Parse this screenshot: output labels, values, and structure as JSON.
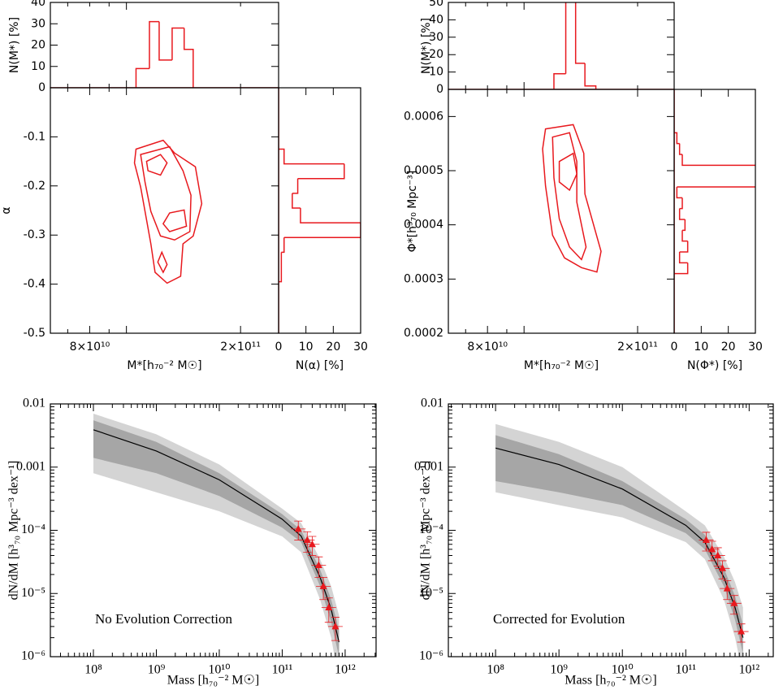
{
  "chart_data": [
    {
      "type": "histogram",
      "ylabel": "N(M*) [%]",
      "xscale": "log",
      "xlim": [
        63000000000.0,
        252000000000.0
      ],
      "ylim": [
        0,
        40
      ],
      "yticks": [
        0,
        10,
        20,
        30,
        40
      ],
      "bins": [
        106000000000.0,
        115000000000.0,
        122000000000.0,
        132000000000.0,
        142000000000.0,
        150000000000.0
      ],
      "counts": [
        9,
        31,
        13,
        28,
        18
      ],
      "color": "#e8191e"
    },
    {
      "type": "contour",
      "xlabel": "M*[h₇₀⁻² M☉]",
      "ylabel": "α",
      "xscale": "log",
      "xlim": [
        63000000000.0,
        252000000000.0
      ],
      "xticks": [
        {
          "value": 80000000000.0,
          "label": "8×10¹⁰"
        },
        {
          "value": 200000000000.0,
          "label": "2×10¹¹"
        }
      ],
      "ylim": [
        -0.5,
        0
      ],
      "yticks": [
        -0.5,
        -0.4,
        -0.3,
        -0.2,
        -0.1
      ],
      "color": "#e8191e",
      "series": [
        {
          "x": [
            106000000000.0,
            125000000000.0,
            134000000000.0,
            152000000000.0,
            158000000000.0,
            150000000000.0,
            141000000000.0,
            139000000000.0,
            128000000000.0,
            119000000000.0,
            116000000000.0,
            113000000000.0,
            109000000000.0,
            105000000000.0
          ],
          "y": [
            -0.125,
            -0.107,
            -0.133,
            -0.161,
            -0.236,
            -0.302,
            -0.318,
            -0.384,
            -0.398,
            -0.376,
            -0.318,
            -0.269,
            -0.202,
            -0.153
          ]
        },
        {
          "x": [
            109000000000.0,
            130000000000.0,
            141000000000.0,
            148000000000.0,
            147000000000.0,
            134000000000.0,
            123000000000.0,
            116000000000.0,
            112000000000.0
          ],
          "y": [
            -0.136,
            -0.12,
            -0.169,
            -0.219,
            -0.293,
            -0.31,
            -0.302,
            -0.252,
            -0.193
          ]
        },
        {
          "x": [
            113000000000.0,
            123000000000.0,
            128000000000.0,
            123000000000.0,
            114000000000.0
          ],
          "y": [
            -0.15,
            -0.136,
            -0.153,
            -0.178,
            -0.169
          ]
        },
        {
          "x": [
            125000000000.0,
            130000000000.0,
            142000000000.0,
            144000000000.0,
            130000000000.0
          ],
          "y": [
            -0.277,
            -0.255,
            -0.249,
            -0.282,
            -0.293
          ]
        },
        {
          "x": [
            124000000000.0,
            128000000000.0,
            125000000000.0,
            121000000000.0
          ],
          "y": [
            -0.335,
            -0.36,
            -0.376,
            -0.355
          ]
        }
      ]
    },
    {
      "type": "histogram",
      "orientation": "horizontal",
      "xlabel": "N(α) [%]",
      "xlim": [
        0,
        30
      ],
      "xticks": [
        0,
        10,
        20,
        30
      ],
      "ylim": [
        -0.5,
        0
      ],
      "bins": [
        -0.395,
        -0.335,
        -0.305,
        -0.275,
        -0.245,
        -0.215,
        -0.185,
        -0.155,
        -0.125
      ],
      "counts": [
        1,
        2,
        30,
        8,
        5,
        7,
        24,
        2
      ],
      "color": "#e8191e"
    },
    {
      "type": "histogram",
      "ylabel": "N(M*) [%]",
      "xscale": "log",
      "xlim": [
        63000000000.0,
        250000000000.0
      ],
      "ylim": [
        0,
        50
      ],
      "yticks": [
        0,
        10,
        20,
        30,
        40,
        50
      ],
      "bins": [
        120000000000.0,
        129000000000.0,
        137000000000.0,
        145000000000.0,
        155000000000.0
      ],
      "counts": [
        9,
        55,
        15,
        2
      ],
      "color": "#e8191e"
    },
    {
      "type": "contour",
      "xlabel": "M*[h₇₀⁻² M☉]",
      "ylabel": "Φ*[h³₇₀ Mpc⁻³]",
      "xscale": "log",
      "xlim": [
        63000000000.0,
        250000000000.0
      ],
      "xticks": [
        {
          "value": 80000000000.0,
          "label": "8×10¹⁰"
        },
        {
          "value": 200000000000.0,
          "label": "2×10¹¹"
        }
      ],
      "ylim": [
        0.0002,
        0.00065
      ],
      "yticks": [
        0.0002,
        0.0003,
        0.0004,
        0.0005,
        0.0006
      ],
      "color": "#e8191e",
      "series": [
        {
          "x": [
            114000000000.0,
            135000000000.0,
            144000000000.0,
            145000000000.0,
            160000000000.0,
            156000000000.0,
            142000000000.0,
            128000000000.0,
            119000000000.0,
            114000000000.0,
            112000000000.0
          ],
          "y": [
            0.000577,
            0.000585,
            0.000532,
            0.000457,
            0.000351,
            0.000313,
            0.000321,
            0.000339,
            0.000381,
            0.000472,
            0.00054
          ]
        },
        {
          "x": [
            119000000000.0,
            132000000000.0,
            138000000000.0,
            138000000000.0,
            146000000000.0,
            142000000000.0,
            132000000000.0,
            124000000000.0,
            120000000000.0
          ],
          "y": [
            0.000562,
            0.00057,
            0.000517,
            0.000442,
            0.000359,
            0.000336,
            0.000359,
            0.000411,
            0.000487
          ]
        },
        {
          "x": [
            124000000000.0,
            135000000000.0,
            138000000000.0,
            132000000000.0,
            124000000000.0
          ],
          "y": [
            0.000517,
            0.000532,
            0.000494,
            0.000464,
            0.000479
          ]
        }
      ]
    },
    {
      "type": "histogram",
      "orientation": "horizontal",
      "xlabel": "N(Φ*) [%]",
      "xlim": [
        0,
        30
      ],
      "xticks": [
        0,
        10,
        20,
        30
      ],
      "ylim": [
        0.0002,
        0.00065
      ],
      "bins": [
        0.00031,
        0.00033,
        0.00035,
        0.00037,
        0.00039,
        0.00041,
        0.00043,
        0.00045,
        0.00047,
        0.00051,
        0.00053,
        0.00055,
        0.00057
      ],
      "counts": [
        5,
        2,
        5,
        3,
        4,
        2,
        3,
        1,
        32,
        3,
        2,
        1
      ],
      "color": "#e8191e"
    },
    {
      "type": "band",
      "xlabel": "Mass [h₇₀⁻² M☉]",
      "ylabel": "dN/dM [h³₇₀ Mpc⁻³ dex⁻¹]",
      "annotation": "No Evolution Correction",
      "xscale": "log",
      "yscale": "log",
      "xlim": [
        20700000.0,
        3100000000000.0
      ],
      "ylim": [
        1e-06,
        0.01
      ],
      "xticks": [
        {
          "value": 100000000.0,
          "label": "10⁸"
        },
        {
          "value": 1000000000.0,
          "label": "10⁹"
        },
        {
          "value": 10000000000.0,
          "label": "10¹⁰"
        },
        {
          "value": 100000000000.0,
          "label": "10¹¹"
        },
        {
          "value": 1000000000000.0,
          "label": "10¹²"
        }
      ],
      "yticks": [
        0.01,
        0.001,
        {
          "value": 0.0001,
          "label": "10⁻⁴"
        },
        {
          "value": 1e-05,
          "label": "10⁻⁵"
        },
        {
          "value": 1e-06,
          "label": "10⁻⁶"
        }
      ],
      "x": [
        100000000.0,
        1000000000.0,
        10000000000.0,
        100000000000.0,
        200000000000.0,
        400000000000.0,
        600000000000.0,
        800000000000.0
      ],
      "median": [
        0.0039,
        0.0018,
        0.00063,
        0.00015,
        8.1e-05,
        1.8e-05,
        5.6e-06,
        1.7e-06
      ],
      "line_color": "#000000",
      "bands": [
        {
          "color": "#d4d4d4",
          "lower": [
            0.0008,
            0.0004,
            0.0002,
            8e-05,
            4.5e-05,
            8e-06,
            2e-06,
            4e-07
          ],
          "upper": [
            0.007,
            0.0033,
            0.0011,
            0.00022,
            0.00013,
            3.5e-05,
            1.3e-05,
            4.5e-06
          ]
        },
        {
          "color": "#a6a6a6",
          "lower": [
            0.0014,
            0.0008,
            0.00035,
            0.00011,
            6.5e-05,
            1.3e-05,
            3.5e-06,
            1e-06
          ],
          "upper": [
            0.0055,
            0.0025,
            0.0008,
            0.00018,
            0.0001,
            2.4e-05,
            8e-06,
            2.6e-06
          ]
        }
      ],
      "points": {
        "color": "#e8191e",
        "x": [
          180000000000.0,
          250000000000.0,
          300000000000.0,
          380000000000.0,
          450000000000.0,
          550000000000.0,
          700000000000.0
        ],
        "y": [
          0.000105,
          7e-05,
          6e-05,
          2.8e-05,
          1.3e-05,
          6e-06,
          3e-06
        ],
        "errors": [
          3.5e-05,
          2.5e-05,
          2e-05,
          1e-05,
          5e-06,
          2.5e-06,
          1.2e-06
        ]
      }
    },
    {
      "type": "band",
      "xlabel": "Mass [h₇₀⁻² M☉]",
      "ylabel": "dN/dM [h³₇₀ Mpc⁻³ dex⁻¹]",
      "annotation": "Corrected for Evolution",
      "xscale": "log",
      "yscale": "log",
      "xlim": [
        18000000.0,
        2400000000000.0
      ],
      "ylim": [
        1e-06,
        0.01
      ],
      "xticks": [
        {
          "value": 100000000.0,
          "label": "10⁸"
        },
        {
          "value": 1000000000.0,
          "label": "10⁹"
        },
        {
          "value": 10000000000.0,
          "label": "10¹⁰"
        },
        {
          "value": 100000000000.0,
          "label": "10¹¹"
        },
        {
          "value": 1000000000000.0,
          "label": "10¹²"
        }
      ],
      "yticks": [
        0.01,
        0.001,
        {
          "value": 0.0001,
          "label": "10⁻⁴"
        },
        {
          "value": 1e-05,
          "label": "10⁻⁵"
        },
        {
          "value": 1e-06,
          "label": "10⁻⁶"
        }
      ],
      "x": [
        100000000.0,
        1000000000.0,
        10000000000.0,
        100000000000.0,
        200000000000.0,
        400000000000.0,
        600000000000.0,
        800000000000.0
      ],
      "median": [
        0.002,
        0.0011,
        0.00045,
        0.00012,
        6.5e-05,
        1.8e-05,
        6e-06,
        2e-06
      ],
      "line_color": "#000000",
      "bands": [
        {
          "color": "#d4d4d4",
          "lower": [
            0.0004,
            0.00025,
            0.00016,
            6.5e-05,
            3.5e-05,
            8e-06,
            2e-06,
            5e-07
          ],
          "upper": [
            0.0048,
            0.0025,
            0.001,
            0.0002,
            0.00012,
            3.8e-05,
            1.5e-05,
            6e-06
          ]
        },
        {
          "color": "#a6a6a6",
          "lower": [
            0.0006,
            0.0004,
            0.00025,
            9e-05,
            5e-05,
            1.3e-05,
            3.8e-06,
            1.1e-06
          ],
          "upper": [
            0.0032,
            0.0016,
            0.0006,
            0.00015,
            8.5e-05,
            2.5e-05,
            9e-06,
            3.2e-06
          ]
        }
      ],
      "points": {
        "color": "#e8191e",
        "x": [
          210000000000.0,
          260000000000.0,
          320000000000.0,
          380000000000.0,
          450000000000.0,
          580000000000.0,
          750000000000.0
        ],
        "y": [
          7e-05,
          5e-05,
          4e-05,
          2.5e-05,
          1.2e-05,
          7e-06,
          2.5e-06
        ],
        "errors": [
          2.3e-05,
          1.7e-05,
          1.3e-05,
          8e-06,
          4e-06,
          2.3e-06,
          8e-07
        ]
      }
    }
  ]
}
